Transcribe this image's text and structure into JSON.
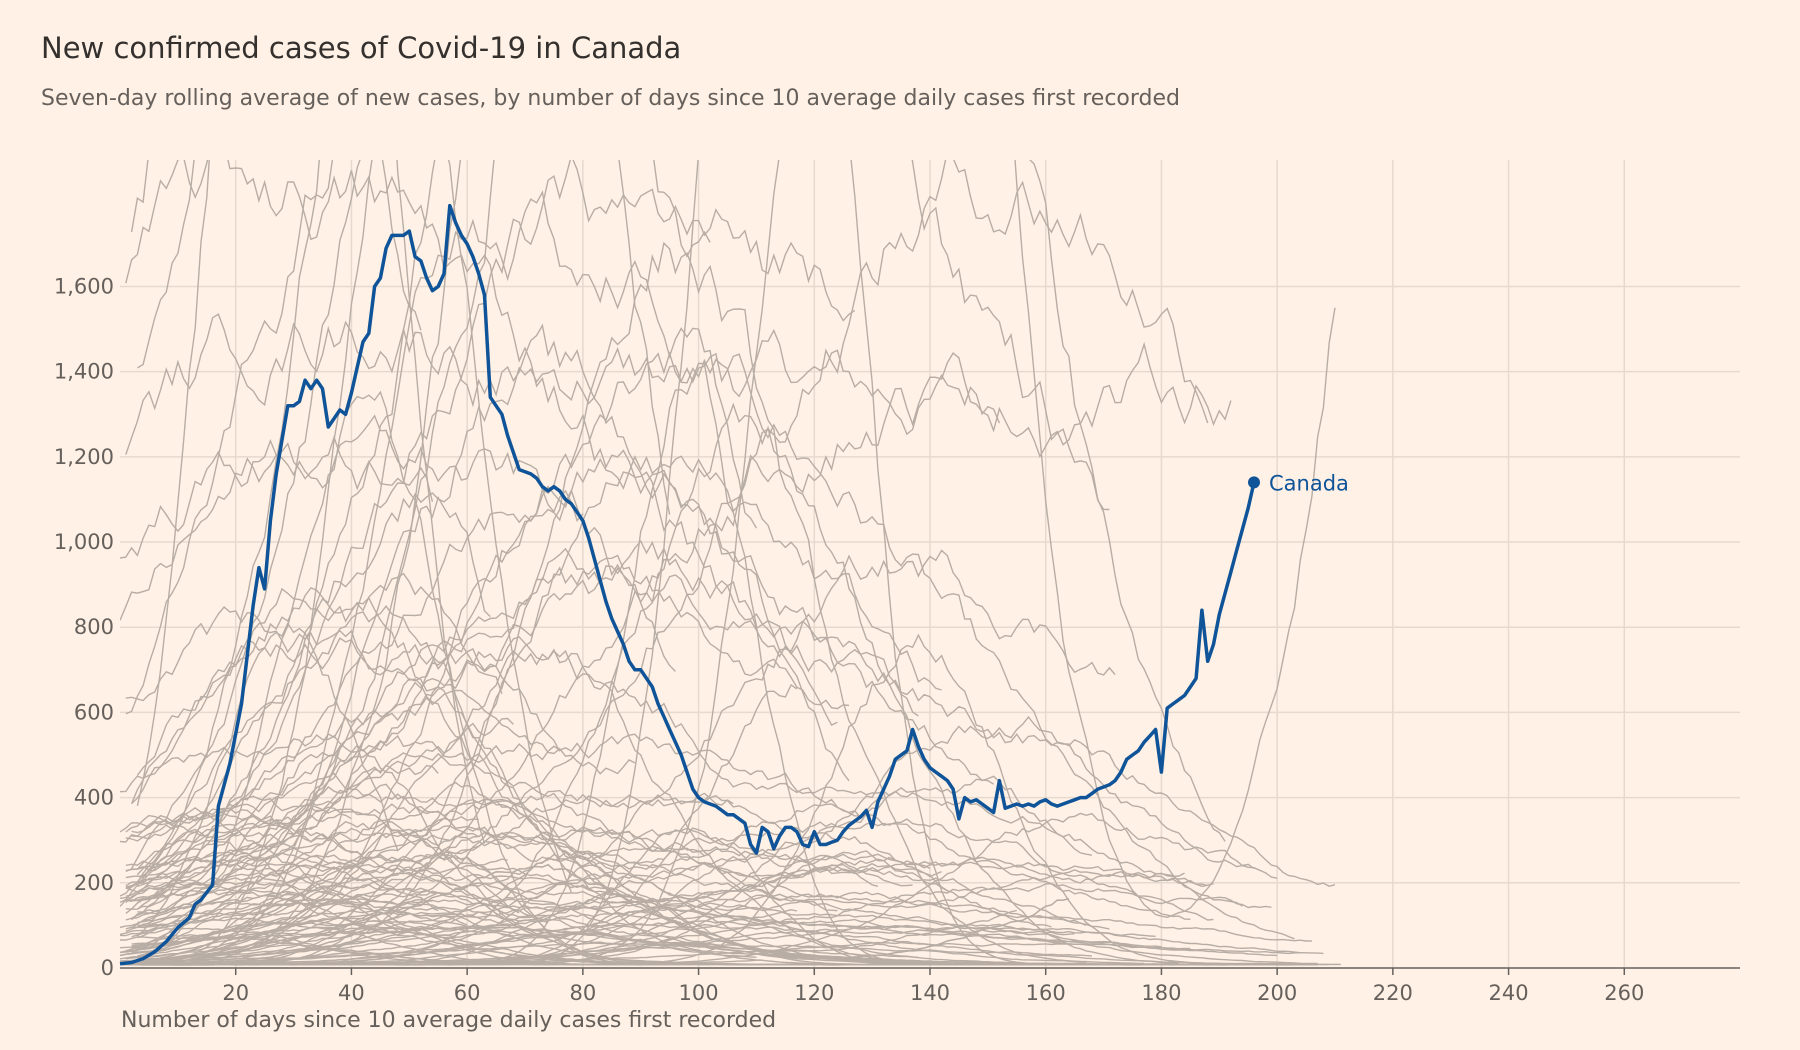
{
  "title": "New confirmed cases of Covid-19 in Canada",
  "subtitle": "Seven-day rolling average of new cases, by number of days since 10 average daily cases first recorded",
  "colors": {
    "background": "#fff1e5",
    "highlight": "#0f5499",
    "context": "#b8ada5",
    "grid": "#e6d9ce",
    "axis": "#66605c"
  },
  "chart_data": {
    "type": "line",
    "title": "New confirmed cases of Covid-19 in Canada",
    "subtitle": "Seven-day rolling average of new cases, by number of days since 10 average daily cases first recorded",
    "xlabel": "Number of days since 10 average daily cases first recorded",
    "ylabel": "",
    "xlim": [
      0,
      280
    ],
    "ylim": [
      0,
      1850
    ],
    "x_ticks": [
      20,
      40,
      60,
      80,
      100,
      120,
      140,
      160,
      180,
      200,
      220,
      240,
      260
    ],
    "x_tick_labels": [
      "20",
      "40",
      "60",
      "80",
      "100",
      "120",
      "140",
      "160",
      "180",
      "200",
      "220",
      "240",
      "260"
    ],
    "y_ticks": [
      0,
      200,
      400,
      600,
      800,
      1000,
      1200,
      1400,
      1600
    ],
    "y_tick_labels": [
      "0",
      "200",
      "400",
      "600",
      "800",
      "1,000",
      "1,200",
      "1,400",
      "1,600"
    ],
    "grid": true,
    "highlight_series": {
      "name": "Canada",
      "color": "#0f5499",
      "points": [
        [
          0,
          10
        ],
        [
          2,
          13
        ],
        [
          4,
          22
        ],
        [
          6,
          38
        ],
        [
          8,
          62
        ],
        [
          10,
          95
        ],
        [
          12,
          118
        ],
        [
          13,
          150
        ],
        [
          14,
          160
        ],
        [
          16,
          195
        ],
        [
          17,
          380
        ],
        [
          19,
          480
        ],
        [
          21,
          620
        ],
        [
          23,
          850
        ],
        [
          24,
          940
        ],
        [
          25,
          890
        ],
        [
          26,
          1050
        ],
        [
          27,
          1160
        ],
        [
          28,
          1240
        ],
        [
          29,
          1320
        ],
        [
          30,
          1320
        ],
        [
          31,
          1330
        ],
        [
          32,
          1380
        ],
        [
          33,
          1360
        ],
        [
          34,
          1380
        ],
        [
          35,
          1360
        ],
        [
          36,
          1270
        ],
        [
          37,
          1290
        ],
        [
          38,
          1310
        ],
        [
          39,
          1300
        ],
        [
          40,
          1350
        ],
        [
          41,
          1410
        ],
        [
          42,
          1470
        ],
        [
          43,
          1490
        ],
        [
          44,
          1600
        ],
        [
          45,
          1620
        ],
        [
          46,
          1690
        ],
        [
          47,
          1720
        ],
        [
          48,
          1720
        ],
        [
          49,
          1720
        ],
        [
          50,
          1730
        ],
        [
          51,
          1670
        ],
        [
          52,
          1660
        ],
        [
          53,
          1620
        ],
        [
          54,
          1590
        ],
        [
          55,
          1600
        ],
        [
          56,
          1630
        ],
        [
          57,
          1790
        ],
        [
          58,
          1750
        ],
        [
          59,
          1720
        ],
        [
          60,
          1700
        ],
        [
          61,
          1670
        ],
        [
          62,
          1630
        ],
        [
          63,
          1580
        ],
        [
          64,
          1340
        ],
        [
          65,
          1320
        ],
        [
          66,
          1300
        ],
        [
          67,
          1250
        ],
        [
          68,
          1210
        ],
        [
          69,
          1170
        ],
        [
          71,
          1160
        ],
        [
          72,
          1150
        ],
        [
          73,
          1130
        ],
        [
          74,
          1120
        ],
        [
          75,
          1130
        ],
        [
          76,
          1120
        ],
        [
          77,
          1100
        ],
        [
          78,
          1090
        ],
        [
          79,
          1070
        ],
        [
          80,
          1050
        ],
        [
          81,
          1010
        ],
        [
          82,
          960
        ],
        [
          83,
          910
        ],
        [
          84,
          860
        ],
        [
          85,
          820
        ],
        [
          86,
          790
        ],
        [
          87,
          760
        ],
        [
          88,
          720
        ],
        [
          89,
          700
        ],
        [
          90,
          700
        ],
        [
          91,
          680
        ],
        [
          92,
          660
        ],
        [
          93,
          620
        ],
        [
          94,
          590
        ],
        [
          95,
          560
        ],
        [
          96,
          530
        ],
        [
          97,
          500
        ],
        [
          98,
          460
        ],
        [
          99,
          420
        ],
        [
          100,
          400
        ],
        [
          101,
          390
        ],
        [
          102,
          385
        ],
        [
          103,
          380
        ],
        [
          104,
          370
        ],
        [
          105,
          360
        ],
        [
          106,
          360
        ],
        [
          107,
          350
        ],
        [
          108,
          340
        ],
        [
          109,
          290
        ],
        [
          110,
          270
        ],
        [
          111,
          330
        ],
        [
          112,
          320
        ],
        [
          113,
          280
        ],
        [
          114,
          310
        ],
        [
          115,
          330
        ],
        [
          116,
          330
        ],
        [
          117,
          320
        ],
        [
          118,
          290
        ],
        [
          119,
          285
        ],
        [
          120,
          320
        ],
        [
          121,
          290
        ],
        [
          122,
          290
        ],
        [
          123,
          295
        ],
        [
          124,
          300
        ],
        [
          125,
          320
        ],
        [
          126,
          335
        ],
        [
          127,
          345
        ],
        [
          128,
          355
        ],
        [
          129,
          370
        ],
        [
          130,
          330
        ],
        [
          131,
          390
        ],
        [
          132,
          420
        ],
        [
          133,
          450
        ],
        [
          134,
          490
        ],
        [
          135,
          500
        ],
        [
          136,
          510
        ],
        [
          137,
          560
        ],
        [
          138,
          520
        ],
        [
          139,
          490
        ],
        [
          140,
          470
        ],
        [
          141,
          460
        ],
        [
          142,
          450
        ],
        [
          143,
          440
        ],
        [
          144,
          420
        ],
        [
          145,
          350
        ],
        [
          146,
          400
        ],
        [
          147,
          390
        ],
        [
          148,
          395
        ],
        [
          149,
          385
        ],
        [
          150,
          375
        ],
        [
          151,
          365
        ],
        [
          152,
          440
        ],
        [
          153,
          375
        ],
        [
          154,
          380
        ],
        [
          155,
          385
        ],
        [
          156,
          380
        ],
        [
          157,
          385
        ],
        [
          158,
          380
        ],
        [
          159,
          390
        ],
        [
          160,
          395
        ],
        [
          161,
          385
        ],
        [
          162,
          380
        ],
        [
          163,
          385
        ],
        [
          164,
          390
        ],
        [
          165,
          395
        ],
        [
          166,
          400
        ],
        [
          167,
          400
        ],
        [
          168,
          410
        ],
        [
          169,
          420
        ],
        [
          170,
          425
        ],
        [
          171,
          430
        ],
        [
          172,
          440
        ],
        [
          173,
          460
        ],
        [
          174,
          490
        ],
        [
          175,
          500
        ],
        [
          176,
          510
        ],
        [
          177,
          530
        ],
        [
          178,
          545
        ],
        [
          179,
          560
        ],
        [
          180,
          460
        ],
        [
          181,
          610
        ],
        [
          182,
          620
        ],
        [
          183,
          630
        ],
        [
          184,
          640
        ],
        [
          185,
          660
        ],
        [
          186,
          680
        ],
        [
          187,
          840
        ],
        [
          188,
          720
        ],
        [
          189,
          760
        ],
        [
          190,
          830
        ],
        [
          191,
          880
        ],
        [
          192,
          930
        ],
        [
          193,
          980
        ],
        [
          194,
          1030
        ],
        [
          195,
          1080
        ],
        [
          196,
          1140
        ]
      ]
    },
    "context_series_count": 130,
    "context_series_color": "#b8ada5",
    "annotation": "Canada"
  }
}
